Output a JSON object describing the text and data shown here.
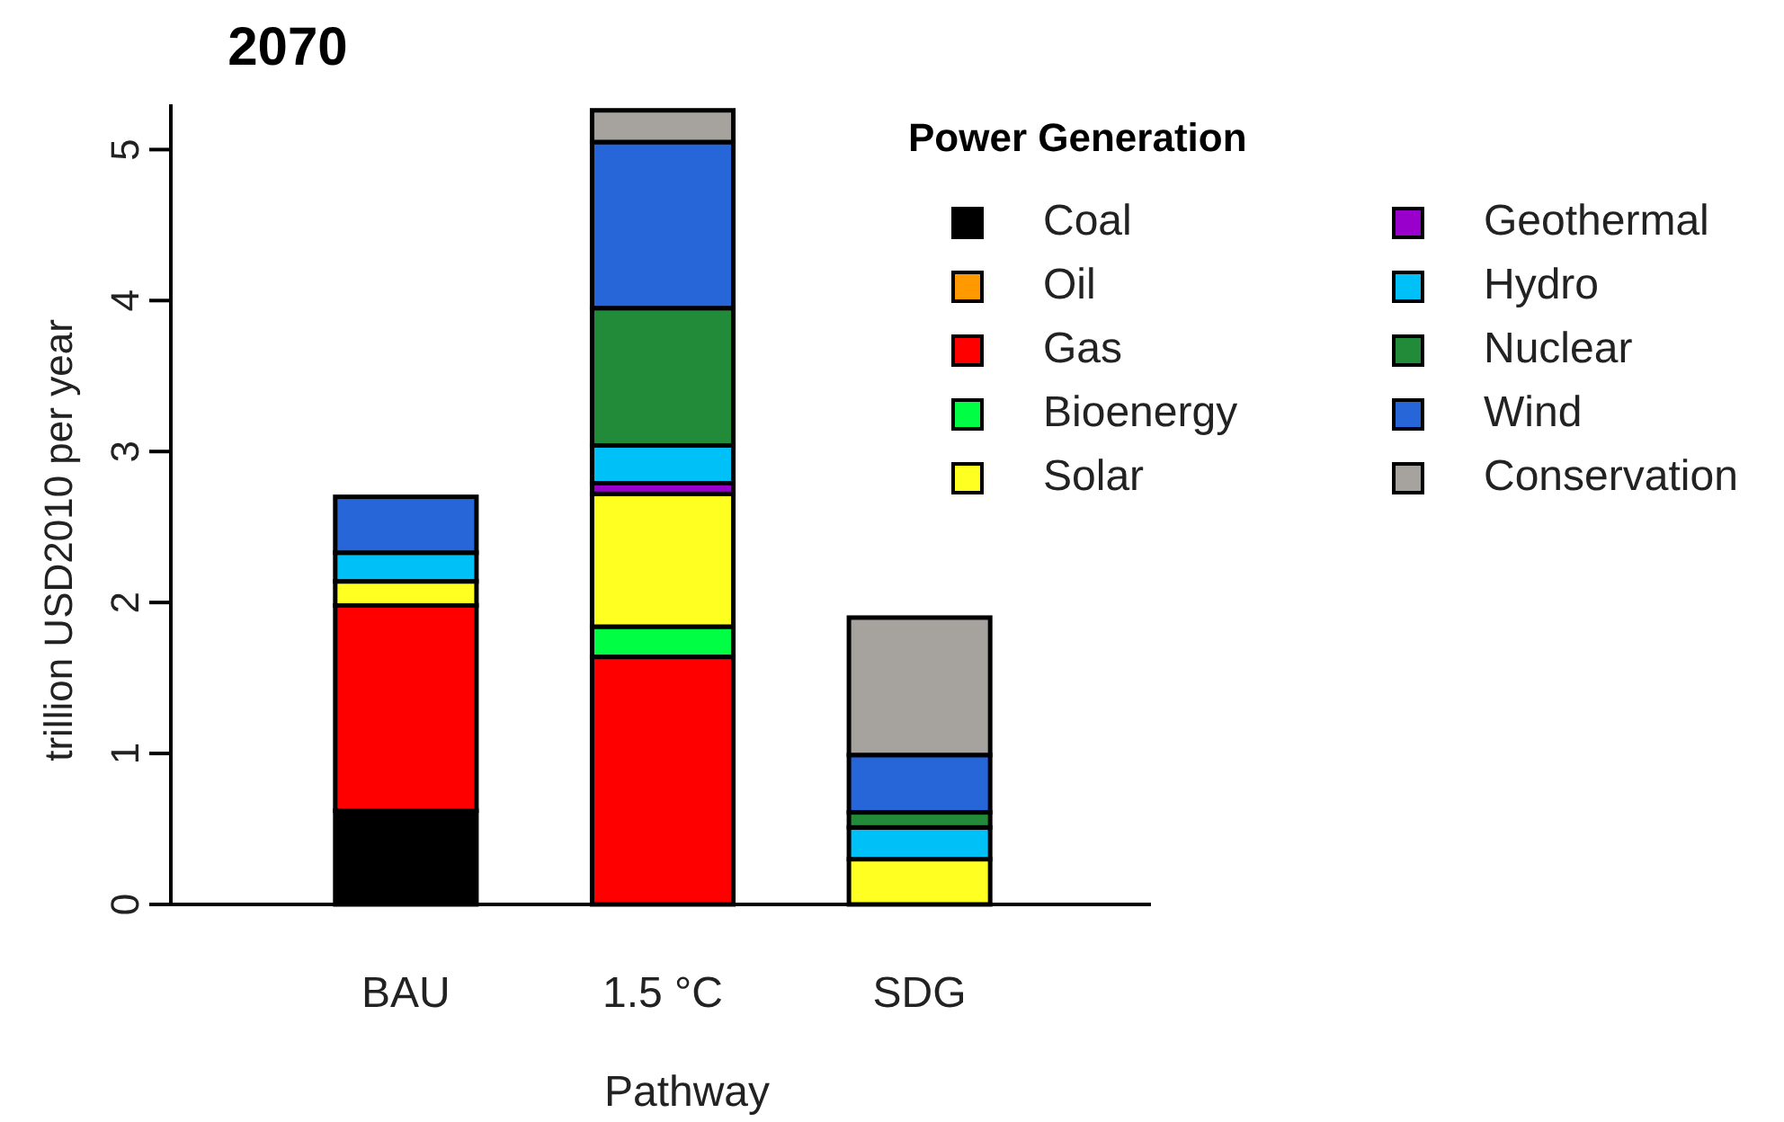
{
  "chart_data": {
    "type": "bar",
    "stacked": true,
    "title": "2070",
    "xlabel": "Pathway",
    "ylabel": "trillion USD2010 per year",
    "legend_title": "Power Generation",
    "legend": "top right",
    "categories": [
      "BAU",
      "1.5 °C",
      "SDG"
    ],
    "ylim": [
      0,
      5.3
    ],
    "yticks": [
      0,
      1,
      2,
      3,
      4,
      5
    ],
    "series": [
      {
        "name": "Coal",
        "color": "#000000",
        "values": [
          0.62,
          0,
          null
        ]
      },
      {
        "name": "Oil",
        "color": "#ff9900",
        "values": [
          0,
          0,
          0
        ]
      },
      {
        "name": "Gas",
        "color": "#ff0000",
        "values": [
          1.36,
          1.64,
          0
        ]
      },
      {
        "name": "Bioenergy",
        "color": "#00ff44",
        "values": [
          0,
          0.2,
          0
        ]
      },
      {
        "name": "Solar",
        "color": "#ffff22",
        "values": [
          0.16,
          0.88,
          0.3
        ]
      },
      {
        "name": "Geothermal",
        "color": "#9900cc",
        "values": [
          0,
          0.07,
          0
        ]
      },
      {
        "name": "Hydro",
        "color": "#00c0f8",
        "values": [
          0.19,
          0.25,
          0.21
        ]
      },
      {
        "name": "Nuclear",
        "color": "#228b3a",
        "values": [
          0,
          0.91,
          0.1
        ]
      },
      {
        "name": "Wind",
        "color": "#2666d8",
        "values": [
          0.37,
          1.1,
          0.38
        ]
      },
      {
        "name": "Conservation",
        "color": "#a6a39e",
        "values": [
          0,
          0.21,
          0.91
        ]
      }
    ]
  }
}
